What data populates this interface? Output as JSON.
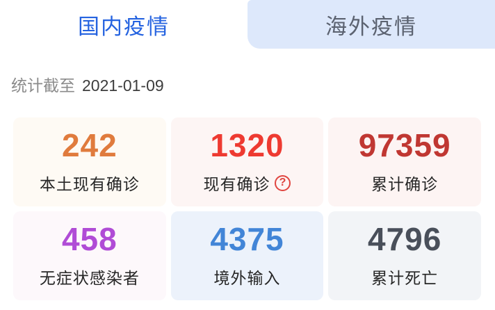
{
  "tabs": [
    {
      "label": "国内疫情",
      "active": true
    },
    {
      "label": "海外疫情",
      "active": false
    }
  ],
  "stats_header": {
    "prefix": "统计截至",
    "date": "2021-01-09"
  },
  "cards": [
    {
      "value": "242",
      "label": "本土现有确诊",
      "value_color": "#e07b3d",
      "bg": "#fefaf4"
    },
    {
      "value": "1320",
      "label": "现有确诊",
      "value_color": "#ee3a31",
      "bg": "#fdf5f4",
      "has_help": true
    },
    {
      "value": "97359",
      "label": "累计确诊",
      "value_color": "#c03732",
      "bg": "#fdf4f3"
    },
    {
      "value": "458",
      "label": "无症状感染者",
      "value_color": "#b04cd6",
      "bg": "#fdf8fb"
    },
    {
      "value": "4375",
      "label": "境外输入",
      "value_color": "#4285d7",
      "bg": "#ecf2fb"
    },
    {
      "value": "4796",
      "label": "累计死亡",
      "value_color": "#494f5a",
      "bg": "#f2f4f7"
    }
  ],
  "icons": {
    "help_glyph": "?"
  },
  "colors": {
    "tab_active_text": "#2563e0",
    "tab_inactive_text": "#5b6270",
    "tab_inactive_bg": "#dde8fb",
    "date_prefix": "#8b8b8b",
    "date_value": "#3d3d3d",
    "help_red": "#e04540"
  }
}
